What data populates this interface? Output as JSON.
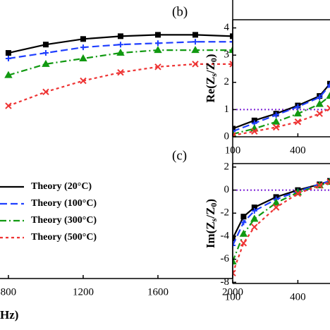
{
  "chart_data": [
    {
      "type": "line",
      "xlabel": "Hz)",
      "xlim": [
        755,
        2000
      ],
      "xticks": [
        800,
        1200,
        1600,
        2000
      ],
      "ylim": [
        0,
        100
      ],
      "x": [
        800,
        1000,
        1200,
        1400,
        1600,
        1800,
        2000
      ],
      "legend": "lower-left",
      "series": [
        {
          "name": "Theory (20°C)",
          "color": "#000000",
          "linestyle": "solid",
          "marker": "square",
          "values": [
            81,
            84,
            86,
            87,
            87.5,
            87.5,
            87
          ]
        },
        {
          "name": "Theory (100°C)",
          "color": "#1f3fff",
          "linestyle": "dashed",
          "marker": "plus",
          "values": [
            79,
            81,
            83,
            84,
            84.5,
            85,
            85
          ]
        },
        {
          "name": "Theory (300°C)",
          "color": "#119911",
          "linestyle": "dashdot",
          "marker": "triangle",
          "values": [
            73,
            77,
            79,
            81,
            82,
            82,
            82
          ]
        },
        {
          "name": "Theory (500°C)",
          "color": "#ee3333",
          "linestyle": "dotted",
          "marker": "x",
          "values": [
            62,
            67,
            71,
            74,
            76,
            77,
            77
          ]
        }
      ]
    },
    {
      "type": "line",
      "panel": "(b)",
      "ylabel": [
        "Re(Z",
        "s",
        "/Z",
        "0",
        ")"
      ],
      "xlim": [
        100,
        548
      ],
      "xticks": [
        100,
        400
      ],
      "ylim": [
        0,
        4.3
      ],
      "yticks": [
        0,
        1,
        2,
        3,
        4
      ],
      "hline": 1,
      "hline_color": "#7a1fd6",
      "x": [
        100,
        200,
        300,
        400,
        500,
        548
      ],
      "series": [
        {
          "color": "#000000",
          "linestyle": "solid",
          "marker": "square",
          "values": [
            0.3,
            0.6,
            0.85,
            1.15,
            1.5,
            1.95
          ]
        },
        {
          "color": "#1f3fff",
          "linestyle": "dashed",
          "marker": "plus",
          "values": [
            0.2,
            0.5,
            0.8,
            1.1,
            1.45,
            1.9
          ]
        },
        {
          "color": "#119911",
          "linestyle": "dashdot",
          "marker": "triangle",
          "values": [
            0.1,
            0.3,
            0.55,
            0.85,
            1.2,
            1.5
          ]
        },
        {
          "color": "#ee3333",
          "linestyle": "dotted",
          "marker": "x",
          "values": [
            0.05,
            0.2,
            0.35,
            0.55,
            0.85,
            1.05
          ]
        }
      ]
    },
    {
      "type": "line",
      "panel": "(c)",
      "ylabel": [
        "Im(Z",
        "s",
        "/Z",
        "0",
        ")"
      ],
      "xlim": [
        100,
        548
      ],
      "xticks": [
        100,
        400
      ],
      "ylim": [
        -8.1,
        2.3
      ],
      "yticks": [
        -8,
        -6,
        -4,
        -2,
        0,
        2
      ],
      "hline": 0,
      "hline_color": "#7a1fd6",
      "x": [
        100,
        150,
        200,
        300,
        400,
        500,
        548
      ],
      "series": [
        {
          "color": "#000000",
          "linestyle": "solid",
          "marker": "square",
          "values": [
            -4.2,
            -2.3,
            -1.5,
            -0.6,
            0,
            0.5,
            0.8
          ]
        },
        {
          "color": "#1f3fff",
          "linestyle": "dashed",
          "marker": "plus",
          "values": [
            -4.8,
            -2.8,
            -1.8,
            -0.8,
            -0.1,
            0.5,
            0.8
          ]
        },
        {
          "color": "#119911",
          "linestyle": "dashdot",
          "marker": "triangle",
          "values": [
            -6.2,
            -3.8,
            -2.5,
            -1.1,
            -0.2,
            0.4,
            0.7
          ]
        },
        {
          "color": "#ee3333",
          "linestyle": "dotted",
          "marker": "x",
          "values": [
            -7.2,
            -4.6,
            -3.2,
            -1.5,
            -0.3,
            0.4,
            0.7
          ]
        }
      ]
    }
  ]
}
